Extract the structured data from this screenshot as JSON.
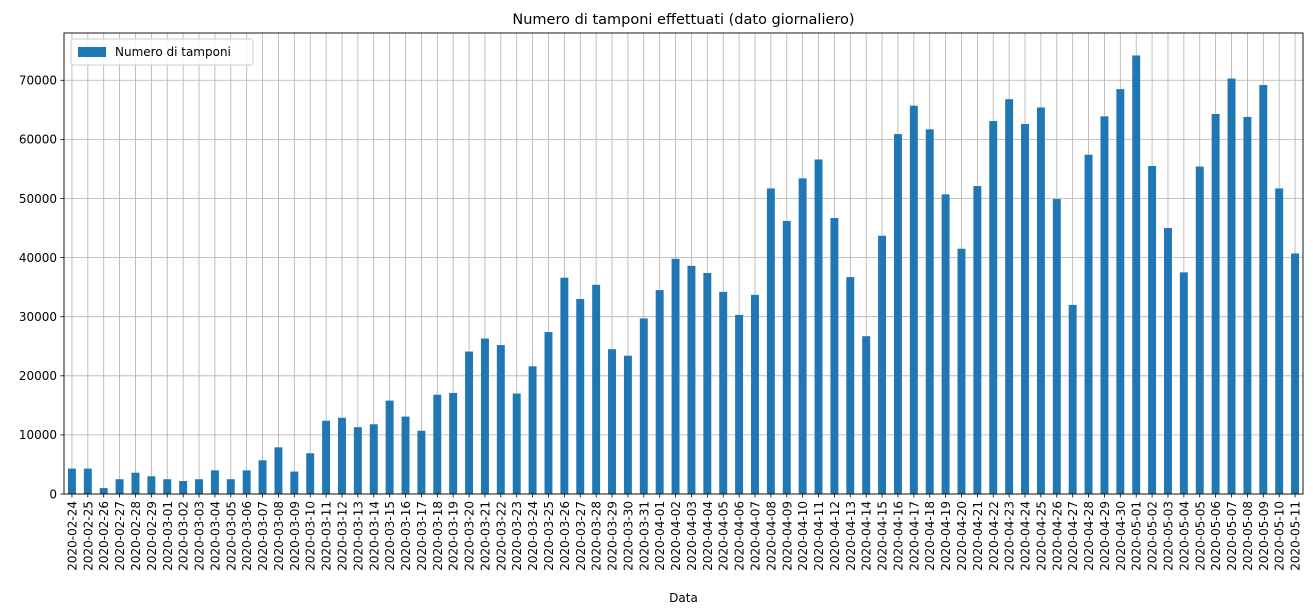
{
  "chart_data": {
    "type": "bar",
    "title": "Numero di tamponi effettuati (dato giornaliero)",
    "xlabel": "Data",
    "ylabel": "",
    "ylim": [
      0,
      78000
    ],
    "yticks": [
      0,
      10000,
      20000,
      30000,
      40000,
      50000,
      60000,
      70000
    ],
    "grid": true,
    "legend_position": "top-left",
    "colors": {
      "bar": "#1f77b4",
      "grid": "#b0b0b0",
      "axis": "#000000"
    },
    "categories": [
      "2020-02-24",
      "2020-02-25",
      "2020-02-26",
      "2020-02-27",
      "2020-02-28",
      "2020-02-29",
      "2020-03-01",
      "2020-03-02",
      "2020-03-03",
      "2020-03-04",
      "2020-03-05",
      "2020-03-06",
      "2020-03-07",
      "2020-03-08",
      "2020-03-09",
      "2020-03-10",
      "2020-03-11",
      "2020-03-12",
      "2020-03-13",
      "2020-03-14",
      "2020-03-15",
      "2020-03-16",
      "2020-03-17",
      "2020-03-18",
      "2020-03-19",
      "2020-03-20",
      "2020-03-21",
      "2020-03-22",
      "2020-03-23",
      "2020-03-24",
      "2020-03-25",
      "2020-03-26",
      "2020-03-27",
      "2020-03-28",
      "2020-03-29",
      "2020-03-30",
      "2020-03-31",
      "2020-04-01",
      "2020-04-02",
      "2020-04-03",
      "2020-04-04",
      "2020-04-05",
      "2020-04-06",
      "2020-04-07",
      "2020-04-08",
      "2020-04-09",
      "2020-04-10",
      "2020-04-11",
      "2020-04-12",
      "2020-04-13",
      "2020-04-14",
      "2020-04-15",
      "2020-04-16",
      "2020-04-17",
      "2020-04-18",
      "2020-04-19",
      "2020-04-20",
      "2020-04-21",
      "2020-04-22",
      "2020-04-23",
      "2020-04-24",
      "2020-04-25",
      "2020-04-26",
      "2020-04-27",
      "2020-04-28",
      "2020-04-29",
      "2020-04-30",
      "2020-05-01",
      "2020-05-02",
      "2020-05-03",
      "2020-05-04",
      "2020-05-05",
      "2020-05-06",
      "2020-05-07",
      "2020-05-08",
      "2020-05-09",
      "2020-05-10",
      "2020-05-11"
    ],
    "series": [
      {
        "name": "Numero di tamponi",
        "values": [
          4300,
          4300,
          1000,
          2500,
          3600,
          3000,
          2500,
          2200,
          2500,
          4000,
          2500,
          4000,
          5700,
          7900,
          3800,
          6900,
          12400,
          12900,
          11300,
          11800,
          15800,
          13100,
          10700,
          16800,
          17100,
          24100,
          26300,
          25200,
          17000,
          21600,
          27400,
          36600,
          33000,
          35400,
          24500,
          23400,
          29700,
          34500,
          39800,
          38600,
          37400,
          34200,
          30300,
          33700,
          51700,
          46200,
          53400,
          56600,
          46700,
          36700,
          26700,
          43700,
          60900,
          65700,
          61700,
          50700,
          41500,
          52100,
          63100,
          66800,
          62600,
          65400,
          49900,
          32000,
          57400,
          63900,
          68500,
          74200,
          55500,
          45000,
          37500,
          55400,
          64300,
          70300,
          63800,
          69200,
          51700,
          40700
        ]
      }
    ]
  }
}
